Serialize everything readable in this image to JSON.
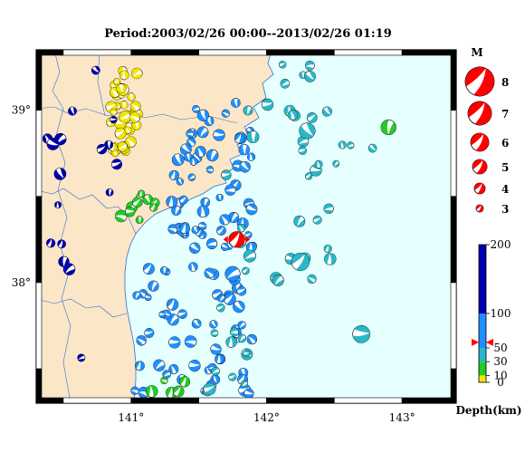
{
  "title": "Period:2003/02/26 00:00--2013/02/26 01:19",
  "colors": {
    "land": "#fce6c8",
    "sea": "#e6ffff",
    "coast": "#2f6fcf",
    "very_shallow": "#f2e600",
    "shallow": "#22cc22",
    "mid": "#29b8c8",
    "deep": "#1f8fff",
    "very_deep": "#0000b0",
    "highlight": "#ff0000"
  },
  "axes": {
    "longitude_ticks": [
      {
        "value": 141,
        "label": "141°"
      },
      {
        "value": 142,
        "label": "142°"
      },
      {
        "value": 143,
        "label": "143°"
      }
    ],
    "latitude_ticks": [
      {
        "value": 39,
        "label": "39°"
      },
      {
        "value": 38,
        "label": "38°"
      }
    ],
    "lon_range": [
      140.3,
      143.4
    ],
    "lat_range": [
      37.3,
      39.35
    ]
  },
  "magnitude_legend": {
    "title": "M",
    "items": [
      {
        "label": "8",
        "m": 8
      },
      {
        "label": "7",
        "m": 7
      },
      {
        "label": "6",
        "m": 6
      },
      {
        "label": "5",
        "m": 5
      },
      {
        "label": "4",
        "m": 4
      },
      {
        "label": "3",
        "m": 3
      }
    ]
  },
  "depth_legend": {
    "title": "Depth(km)",
    "ticks": [
      {
        "value": 200,
        "label": "200"
      },
      {
        "value": 100,
        "label": "100"
      },
      {
        "value": 50,
        "label": "50"
      },
      {
        "value": 30,
        "label": "30"
      },
      {
        "value": 10,
        "label": "10"
      },
      {
        "value": 0,
        "label": "0"
      }
    ],
    "marker_depth": 58
  },
  "highlight_event": {
    "lon": 141.78,
    "lat": 38.25,
    "depth": 58,
    "m": 5.6
  }
}
